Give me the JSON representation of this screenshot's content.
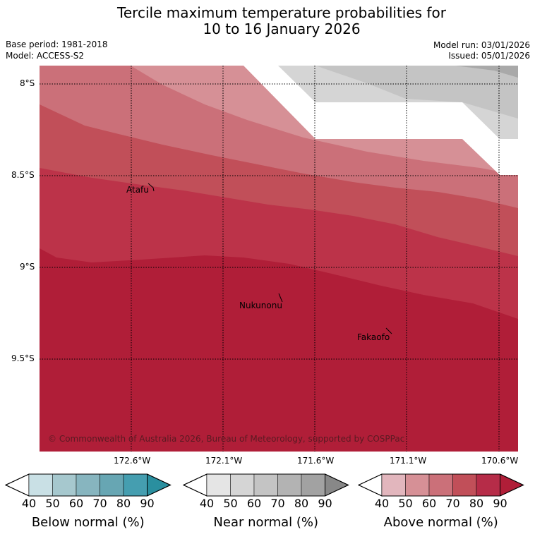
{
  "title_line1": "Tercile maximum temperature probabilities for",
  "title_line2": "10 to 16 January 2026",
  "base_period": "Base period: 1981-2018",
  "model": "Model: ACCESS-S2",
  "model_run": "Model run: 03/01/2026",
  "issued": "Issued: 05/01/2026",
  "latitude_labels": [
    "8°S",
    "8.5°S",
    "9°S",
    "9.5°S"
  ],
  "longitude_labels": [
    "172.6°W",
    "172.1°W",
    "171.6°W",
    "171.1°W",
    "170.6°W"
  ],
  "places": [
    "Atafu",
    "Nukunonu",
    "Fakaofo"
  ],
  "copyright": "© Commonwealth of Australia 2026, Bureau of Meteorology, supported by COSPPac",
  "colorbars": [
    {
      "label": "Below normal (%)",
      "ticks": [
        "40",
        "50",
        "60",
        "70",
        "80",
        "90"
      ],
      "colors": [
        "#ffffff",
        "#c9e0e5",
        "#a6c8ce",
        "#87b5bf",
        "#67a6b3",
        "#459eb0",
        "#2a8f9f"
      ]
    },
    {
      "label": "Near normal (%)",
      "ticks": [
        "40",
        "50",
        "60",
        "70",
        "80",
        "90"
      ],
      "colors": [
        "#ffffff",
        "#e5e5e5",
        "#d5d5d5",
        "#c4c4c4",
        "#b3b3b3",
        "#a2a2a2",
        "#888888"
      ]
    },
    {
      "label": "Above normal (%)",
      "ticks": [
        "40",
        "50",
        "60",
        "70",
        "80",
        "90"
      ],
      "colors": [
        "#ffffff",
        "#e2b6bd",
        "#d69096",
        "#cb7079",
        "#c14f59",
        "#b62c48",
        "#b01e38"
      ]
    }
  ],
  "map_colors": {
    "above_50_60": "#d69096",
    "above_60_70": "#cb7079",
    "above_70_80": "#c14f59",
    "above_80_90": "#bc3349",
    "above_90": "#b01e38",
    "near_50_60": "#d5d5d5",
    "near_60_70": "#c4c4c4",
    "near_70_80": "#a9a9a9"
  }
}
